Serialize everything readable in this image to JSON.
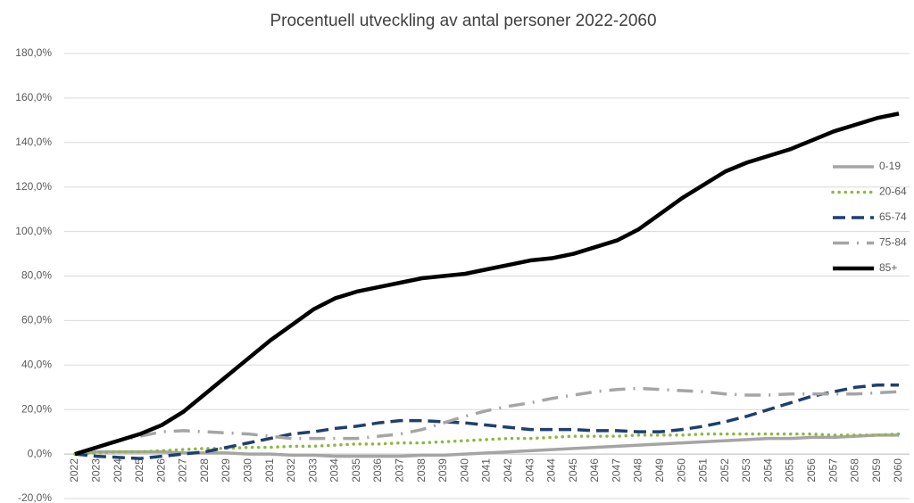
{
  "chart_data": {
    "type": "line",
    "title": "Procentuell utveckling av antal personer 2022-2060",
    "categories": [
      "2022",
      "2023",
      "2024",
      "2025",
      "2026",
      "2027",
      "2028",
      "2029",
      "2030",
      "2031",
      "2032",
      "2033",
      "2034",
      "2035",
      "2036",
      "2037",
      "2038",
      "2039",
      "2040",
      "2041",
      "2042",
      "2043",
      "2044",
      "2045",
      "2046",
      "2047",
      "2048",
      "2049",
      "2050",
      "2051",
      "2052",
      "2053",
      "2054",
      "2055",
      "2056",
      "2057",
      "2058",
      "2059",
      "2060"
    ],
    "ylim": [
      -20,
      180
    ],
    "yticks": [
      {
        "value": -20,
        "label": "-20,0%"
      },
      {
        "value": 0,
        "label": "0,0%"
      },
      {
        "value": 20,
        "label": "20,0%"
      },
      {
        "value": 40,
        "label": "40,0%"
      },
      {
        "value": 60,
        "label": "60,0%"
      },
      {
        "value": 80,
        "label": "80,0%"
      },
      {
        "value": 100,
        "label": "100,0%"
      },
      {
        "value": 120,
        "label": "120,0%"
      },
      {
        "value": 140,
        "label": "140,0%"
      },
      {
        "value": 160,
        "label": "160,0%"
      },
      {
        "value": 180,
        "label": "180,0%"
      }
    ],
    "grid": true,
    "legend": "right",
    "series": [
      {
        "name": "0-19",
        "color": "#a5a5a5",
        "dash": "solid",
        "values": [
          0,
          1,
          1,
          1,
          1,
          0.5,
          0.5,
          0.5,
          0,
          0,
          -0.5,
          -0.5,
          -1,
          -1,
          -1,
          -1,
          -0.5,
          -0.5,
          0,
          0.5,
          1,
          1.5,
          2,
          2.5,
          3,
          3.5,
          4,
          4.5,
          5,
          5.5,
          6,
          6.5,
          7,
          7,
          7.5,
          7.5,
          8,
          8.5,
          8.5
        ]
      },
      {
        "name": "20-64",
        "color": "#8db843",
        "dash": "dot",
        "values": [
          0,
          0.5,
          1,
          1,
          1.5,
          2,
          2.5,
          2.5,
          3,
          3,
          3.5,
          3.5,
          4,
          4.5,
          4.5,
          5,
          5,
          5.5,
          6,
          6.5,
          7,
          7,
          7.5,
          8,
          8,
          8,
          8.5,
          8.5,
          8.5,
          9,
          9,
          9,
          9,
          9,
          9,
          8.5,
          8.5,
          8.5,
          9
        ]
      },
      {
        "name": "65-74",
        "color": "#1f3f6e",
        "dash": "dash",
        "values": [
          0,
          -1,
          -1.5,
          -2,
          -1,
          0,
          1,
          3,
          5,
          7,
          9,
          10,
          11.5,
          12.5,
          14,
          15,
          15,
          14.5,
          14,
          13,
          12,
          11,
          11,
          11,
          10.5,
          10.5,
          10,
          10,
          11,
          12.5,
          14.5,
          17,
          20,
          23,
          26,
          28,
          30,
          31,
          31
        ]
      },
      {
        "name": "75-84",
        "color": "#a5a5a5",
        "dash": "dashdot",
        "values": [
          0,
          3,
          6,
          8,
          10,
          10.5,
          10,
          9.5,
          9,
          8,
          7,
          7,
          7,
          7,
          8,
          9,
          11,
          14,
          17,
          19.5,
          21.5,
          23,
          25,
          26.5,
          28,
          29,
          29.5,
          29,
          28.5,
          28,
          27,
          26.5,
          26.5,
          27,
          27,
          27,
          27,
          27.5,
          28
        ]
      },
      {
        "name": "85+",
        "color": "#000000",
        "dash": "solid",
        "values": [
          0,
          3,
          6,
          9,
          13,
          19,
          27,
          35,
          43,
          51,
          58,
          65,
          70,
          73,
          75,
          77,
          79,
          80,
          81,
          83,
          85,
          87,
          88,
          90,
          93,
          96,
          101,
          108,
          115,
          121,
          127,
          131,
          134,
          137,
          141,
          145,
          148,
          151,
          153
        ]
      }
    ]
  }
}
